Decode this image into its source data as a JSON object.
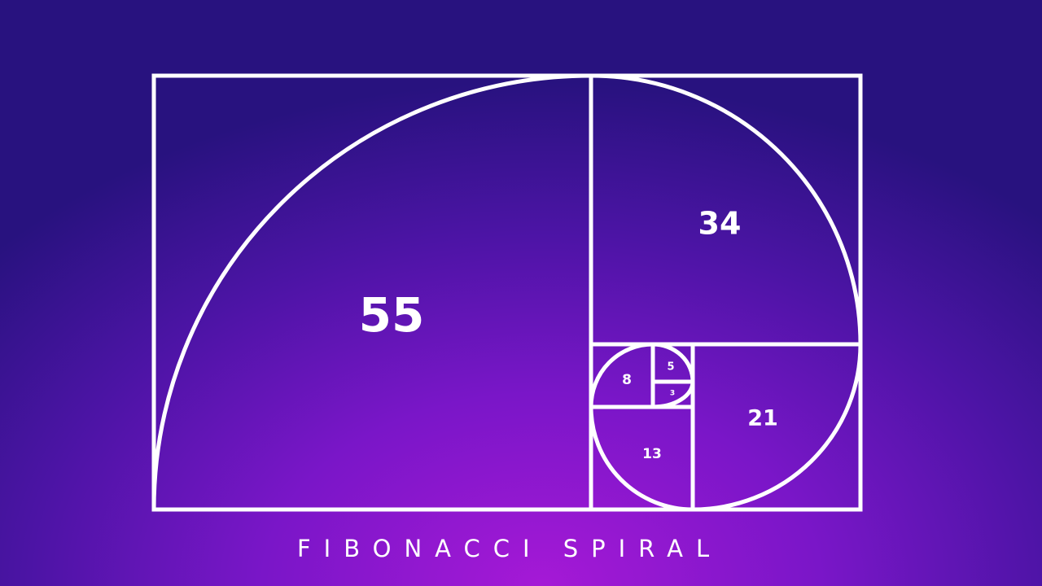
{
  "colors": {
    "line": "#ffffff",
    "background_top": "#28127f",
    "background_bottom": "#a519d6"
  },
  "squares": {
    "s55": "55",
    "s34": "34",
    "s21": "21",
    "s13": "13",
    "s8": "8",
    "s5": "5",
    "s3": "3"
  },
  "caption": "FIBONACCI SPIRAL"
}
